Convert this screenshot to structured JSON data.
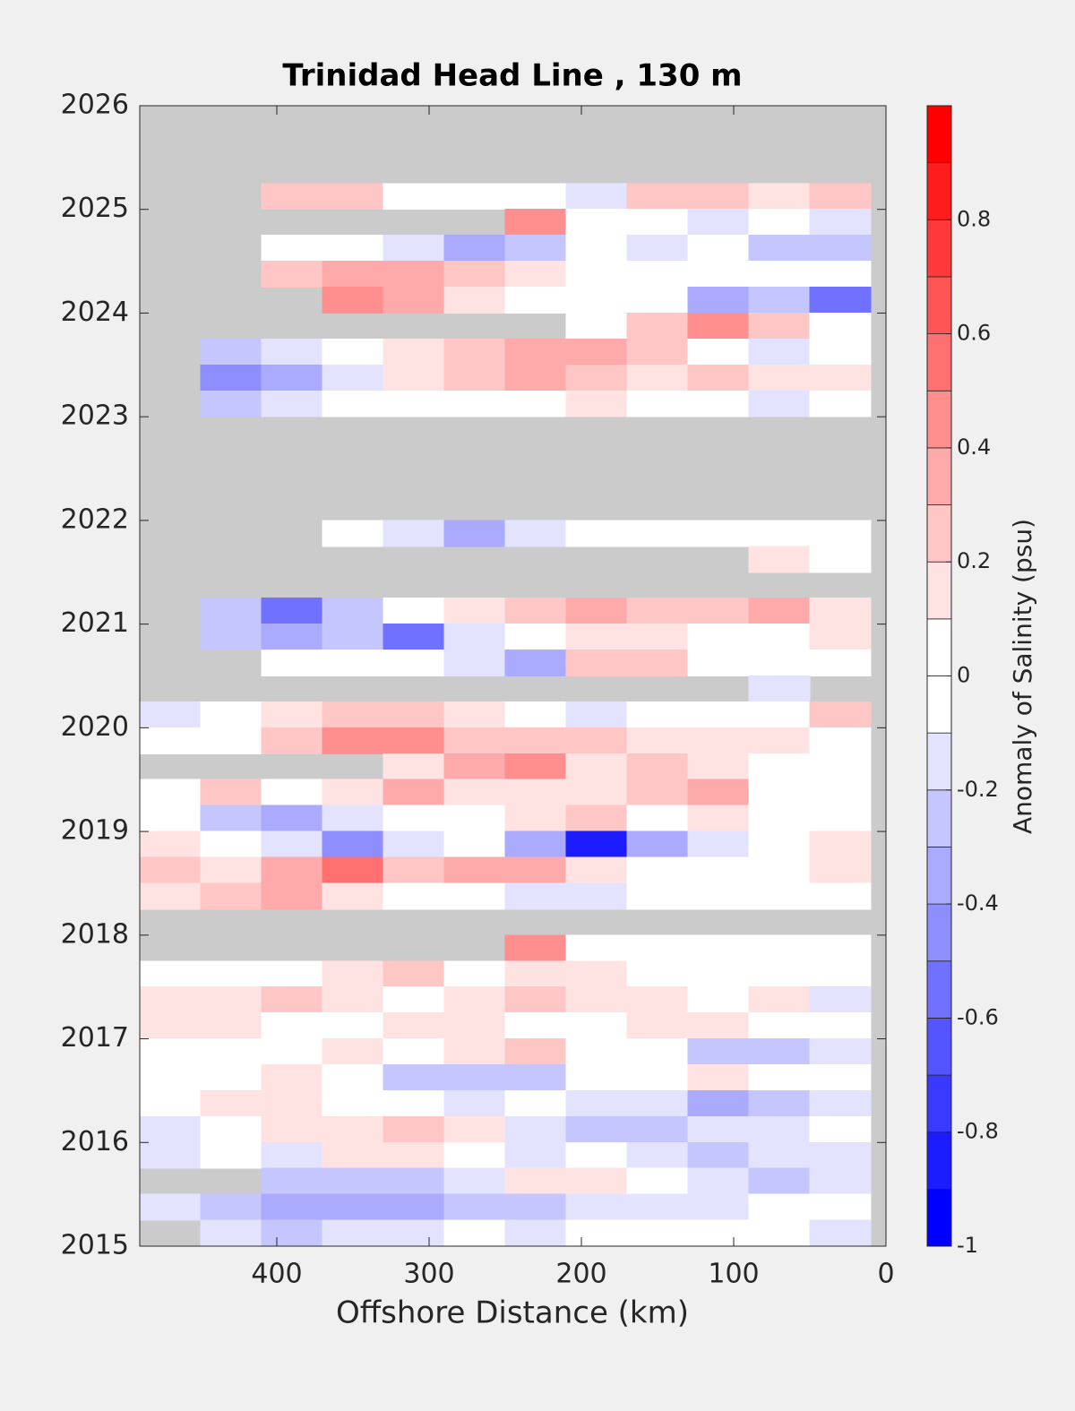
{
  "chart_data": {
    "type": "contour",
    "title": "Trinidad Head Line , 130 m",
    "xlabel": "Offshore Distance (km)",
    "colorbar_label": "Anomaly of Salinity (psu)",
    "xlim": [
      490,
      0
    ],
    "xticks": [
      400,
      300,
      200,
      100,
      0
    ],
    "ylim": [
      2015,
      2026
    ],
    "yticks": [
      2015,
      2016,
      2017,
      2018,
      2019,
      2020,
      2021,
      2022,
      2023,
      2024,
      2025,
      2026
    ],
    "clim": [
      -1,
      1
    ],
    "cticks": [
      -1,
      -0.8,
      -0.6,
      -0.4,
      -0.2,
      0,
      0.2,
      0.4,
      0.6,
      0.8
    ],
    "colormap": [
      "#0000ff",
      "#1c1cff",
      "#3939ff",
      "#5555ff",
      "#7171ff",
      "#8e8eff",
      "#aaaaff",
      "#c6c6ff",
      "#e3e3ff",
      "#ffffff",
      "#ffffff",
      "#ffe3e3",
      "#ffc6c6",
      "#ffaaaa",
      "#ff8e8e",
      "#ff7171",
      "#ff5555",
      "#ff3939",
      "#ff1c1c",
      "#ff0000"
    ],
    "missing_color": "#cbcbcb",
    "x": [
      470,
      430,
      390,
      350,
      310,
      270,
      230,
      190,
      150,
      110,
      70,
      30
    ],
    "y": [
      2025.875,
      2025.625,
      2025.375,
      2025.125,
      2024.875,
      2024.625,
      2024.375,
      2024.125,
      2023.875,
      2023.625,
      2023.375,
      2023.125,
      2022.875,
      2022.625,
      2022.375,
      2022.125,
      2021.875,
      2021.625,
      2021.375,
      2021.125,
      2020.875,
      2020.625,
      2020.375,
      2020.125,
      2019.875,
      2019.625,
      2019.375,
      2019.125,
      2018.875,
      2018.625,
      2018.375,
      2018.125,
      2017.875,
      2017.625,
      2017.375,
      2017.125,
      2016.875,
      2016.625,
      2016.375,
      2016.125,
      2015.875,
      2015.625,
      2015.375,
      2015.125
    ],
    "z": [
      [
        null,
        null,
        null,
        null,
        null,
        null,
        null,
        null,
        null,
        null,
        null,
        null
      ],
      [
        null,
        null,
        null,
        null,
        null,
        null,
        null,
        null,
        null,
        null,
        null,
        null
      ],
      [
        null,
        null,
        null,
        null,
        null,
        null,
        null,
        null,
        null,
        null,
        null,
        null
      ],
      [
        null,
        null,
        0.2,
        0.2,
        0,
        0,
        0,
        -0.1,
        0.2,
        0.2,
        0.1,
        0.2
      ],
      [
        null,
        null,
        null,
        null,
        null,
        null,
        0.4,
        0,
        0,
        -0.1,
        0,
        -0.1
      ],
      [
        null,
        null,
        0,
        0,
        -0.1,
        -0.3,
        -0.2,
        0,
        -0.1,
        0,
        -0.2,
        -0.2
      ],
      [
        null,
        null,
        0.2,
        0.3,
        0.3,
        0.2,
        0.1,
        0,
        0,
        0,
        0,
        0
      ],
      [
        null,
        null,
        null,
        0.4,
        0.3,
        0.1,
        0,
        0,
        0,
        -0.3,
        -0.2,
        -0.5
      ],
      [
        null,
        null,
        null,
        null,
        null,
        null,
        null,
        0,
        0.2,
        0.4,
        0.2,
        0
      ],
      [
        null,
        -0.2,
        -0.1,
        0,
        0.1,
        0.2,
        0.3,
        0.3,
        0.2,
        0,
        -0.1,
        0
      ],
      [
        null,
        -0.4,
        -0.3,
        -0.1,
        0.1,
        0.2,
        0.3,
        0.2,
        0.1,
        0.2,
        0.1,
        0.1
      ],
      [
        null,
        -0.2,
        -0.1,
        0,
        0,
        0,
        0,
        0.1,
        0,
        0,
        -0.1,
        0
      ],
      [
        null,
        null,
        null,
        null,
        null,
        null,
        null,
        null,
        null,
        null,
        null,
        null
      ],
      [
        null,
        null,
        null,
        null,
        null,
        null,
        null,
        null,
        null,
        null,
        null,
        null
      ],
      [
        null,
        null,
        null,
        null,
        null,
        null,
        null,
        null,
        null,
        null,
        null,
        null
      ],
      [
        null,
        null,
        null,
        null,
        null,
        null,
        null,
        null,
        null,
        null,
        null,
        null
      ],
      [
        null,
        null,
        null,
        0,
        -0.1,
        -0.3,
        -0.1,
        0,
        0,
        0,
        0,
        0
      ],
      [
        null,
        null,
        null,
        null,
        null,
        null,
        null,
        null,
        null,
        null,
        0.1,
        0
      ],
      [
        null,
        null,
        null,
        null,
        null,
        null,
        null,
        null,
        null,
        null,
        null,
        null
      ],
      [
        null,
        -0.2,
        -0.5,
        -0.2,
        0,
        0.1,
        0.2,
        0.3,
        0.2,
        0.2,
        0.3,
        0.1
      ],
      [
        null,
        -0.2,
        -0.3,
        -0.2,
        -0.5,
        -0.1,
        0,
        0.1,
        0.1,
        0,
        0,
        0.1
      ],
      [
        null,
        null,
        0,
        0,
        0,
        -0.1,
        -0.3,
        0.2,
        0.2,
        0,
        0,
        0
      ],
      [
        null,
        null,
        null,
        null,
        null,
        null,
        null,
        null,
        null,
        null,
        -0.1,
        null
      ],
      [
        -0.1,
        0,
        0.1,
        0.2,
        0.2,
        0.1,
        0,
        -0.1,
        0,
        0,
        0,
        0.2
      ],
      [
        0,
        0,
        0.2,
        0.4,
        0.4,
        0.2,
        0.2,
        0.2,
        0.1,
        0.1,
        0.1,
        0
      ],
      [
        null,
        null,
        null,
        null,
        0.1,
        0.3,
        0.4,
        0.1,
        0.2,
        0.1,
        0,
        0
      ],
      [
        0,
        0.2,
        0,
        0.1,
        0.3,
        0.1,
        0.1,
        0.1,
        0.2,
        0.3,
        0,
        0
      ],
      [
        0,
        -0.2,
        -0.3,
        -0.1,
        0,
        0,
        0.1,
        0.2,
        0,
        0.1,
        0,
        0
      ],
      [
        0.1,
        0,
        -0.1,
        -0.4,
        -0.1,
        0,
        -0.3,
        -0.8,
        -0.3,
        -0.1,
        0,
        0.1
      ],
      [
        0.2,
        0.1,
        0.3,
        0.5,
        0.2,
        0.3,
        0.3,
        0.1,
        0,
        0,
        0,
        0.1
      ],
      [
        0.1,
        0.2,
        0.3,
        0.1,
        0,
        0,
        -0.1,
        -0.1,
        0,
        0,
        0,
        0
      ],
      [
        null,
        null,
        null,
        null,
        null,
        null,
        null,
        null,
        null,
        null,
        null,
        null
      ],
      [
        null,
        null,
        null,
        null,
        null,
        null,
        0.4,
        0,
        0,
        0,
        0,
        0
      ],
      [
        0,
        0,
        0,
        0.1,
        0.2,
        0,
        0.1,
        0.1,
        0,
        0,
        0,
        0
      ],
      [
        0.1,
        0.1,
        0.2,
        0.1,
        0,
        0.1,
        0.2,
        0.1,
        0.1,
        0,
        0.1,
        -0.1
      ],
      [
        0.1,
        0.1,
        0,
        0,
        0.1,
        0.1,
        0,
        0,
        0.1,
        0.1,
        0,
        0
      ],
      [
        0,
        0,
        0,
        0.1,
        0,
        0.1,
        0.2,
        0,
        0,
        -0.2,
        -0.2,
        -0.1
      ],
      [
        0,
        0,
        0.1,
        0,
        -0.2,
        -0.2,
        -0.2,
        0,
        0,
        0.1,
        0,
        0
      ],
      [
        0,
        0.1,
        0.1,
        0,
        0,
        -0.1,
        0,
        -0.1,
        -0.1,
        -0.3,
        -0.2,
        -0.1
      ],
      [
        -0.1,
        0,
        0.1,
        0.1,
        0.2,
        0.1,
        -0.1,
        -0.2,
        -0.2,
        -0.1,
        -0.1,
        0
      ],
      [
        -0.1,
        0,
        -0.1,
        0.1,
        0.1,
        0,
        -0.1,
        0,
        -0.1,
        -0.2,
        -0.1,
        -0.1
      ],
      [
        null,
        null,
        -0.2,
        -0.2,
        -0.2,
        -0.1,
        0.1,
        0.1,
        0,
        -0.1,
        -0.2,
        -0.1
      ],
      [
        -0.1,
        -0.2,
        -0.3,
        -0.3,
        -0.3,
        -0.2,
        -0.2,
        -0.1,
        -0.1,
        -0.1,
        0,
        0
      ],
      [
        null,
        -0.1,
        -0.2,
        -0.1,
        -0.1,
        0,
        -0.1,
        0,
        0,
        0,
        0,
        -0.1
      ]
    ]
  }
}
